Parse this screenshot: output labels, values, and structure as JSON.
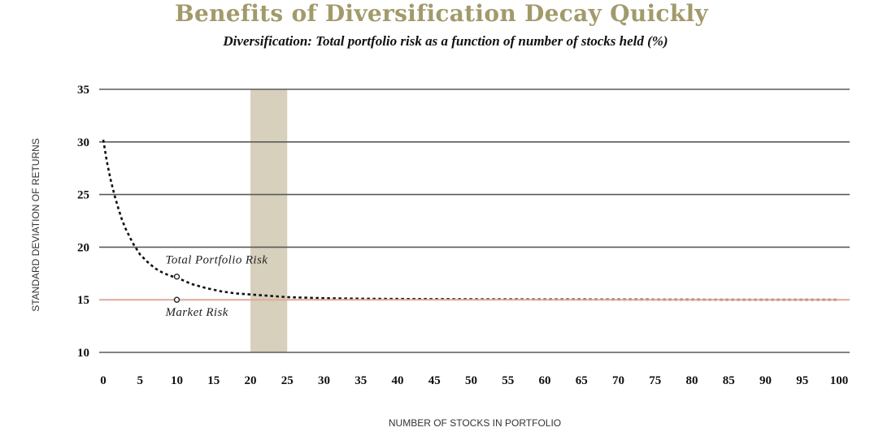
{
  "chart_data": {
    "type": "line",
    "title": "Benefits of Diversification Decay Quickly",
    "subtitle": "Diversification: Total portfolio risk as a function of number of stocks held (%)",
    "xlabel": "NUMBER OF STOCKS IN PORTFOLIO",
    "ylabel": "STANDARD DEVIATION OF RETURNS",
    "xlim": [
      0,
      100
    ],
    "ylim": [
      10,
      35
    ],
    "x_ticks": [
      0,
      5,
      10,
      15,
      20,
      25,
      30,
      35,
      40,
      45,
      50,
      55,
      60,
      65,
      70,
      75,
      80,
      85,
      90,
      95,
      100
    ],
    "y_ticks": [
      10,
      15,
      20,
      25,
      30,
      35
    ],
    "grid": "horizontal",
    "highlight_band": {
      "x_start": 20,
      "x_end": 25,
      "color": "#d6d0bc"
    },
    "series": [
      {
        "name": "Total Portfolio Risk",
        "style": "dotted",
        "color": "#111111",
        "x": [
          0,
          0.5,
          1,
          1.5,
          2,
          2.5,
          3,
          4,
          5,
          6,
          7,
          8,
          9,
          10,
          12,
          14,
          16,
          18,
          20,
          22,
          25,
          30,
          35,
          40,
          50,
          60,
          70,
          80,
          90,
          100
        ],
        "values": [
          30.2,
          28.1,
          26.4,
          25.0,
          23.8,
          22.7,
          21.8,
          20.4,
          19.3,
          18.6,
          18.0,
          17.6,
          17.3,
          17.1,
          16.5,
          16.1,
          15.8,
          15.6,
          15.5,
          15.4,
          15.25,
          15.15,
          15.1,
          15.08,
          15.05,
          15.03,
          15.02,
          15.01,
          15.0,
          15.0
        ]
      },
      {
        "name": "Market Risk",
        "style": "solid",
        "color": "#e2a99a",
        "x": [
          0,
          100
        ],
        "values": [
          15,
          15
        ]
      }
    ],
    "annotations": [
      {
        "text": "Total Portfolio Risk",
        "x": 10,
        "y": 17.2,
        "placement": "above"
      },
      {
        "text": "Market Risk",
        "x": 10,
        "y": 15,
        "placement": "below"
      }
    ]
  }
}
